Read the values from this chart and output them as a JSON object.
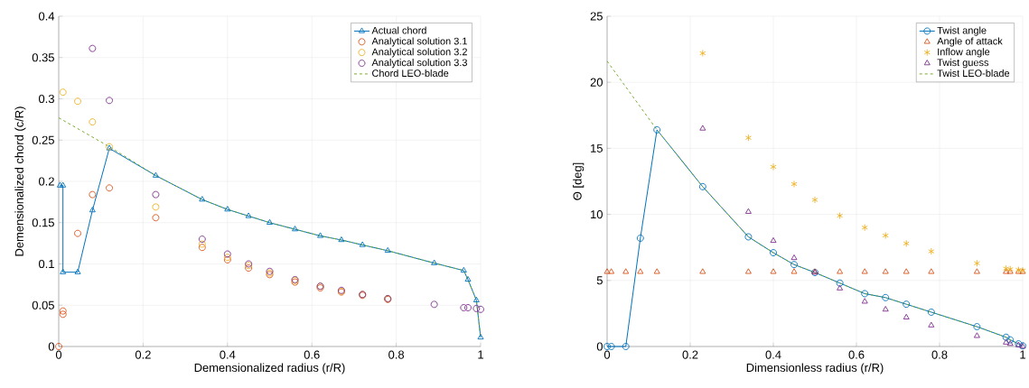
{
  "chart_data": [
    {
      "type": "line",
      "xlabel": "Demensionalized radius (r/R)",
      "ylabel": "Demensionalized chord (c/R)",
      "xlim": [
        0,
        1
      ],
      "ylim": [
        0,
        0.4
      ],
      "xticks": [
        0,
        0.2,
        0.4,
        0.6,
        0.8,
        1
      ],
      "yticks": [
        0,
        0.05,
        0.1,
        0.15,
        0.2,
        0.25,
        0.3,
        0.35,
        0.4
      ],
      "grid": true,
      "legend": "top right",
      "series": [
        {
          "name": "Actual chord",
          "type": "line",
          "color": "#0072bd",
          "marker": "triangle",
          "line_style": "solid",
          "x": [
            0.003,
            0.01,
            0.01,
            0.045,
            0.08,
            0.12,
            0.23,
            0.34,
            0.4,
            0.45,
            0.5,
            0.56,
            0.62,
            0.67,
            0.72,
            0.78,
            0.89,
            0.96,
            0.97,
            0.99,
            1.0
          ],
          "values": [
            0.195,
            0.195,
            0.09,
            0.09,
            0.165,
            0.24,
            0.207,
            0.178,
            0.166,
            0.158,
            0.15,
            0.142,
            0.134,
            0.129,
            0.123,
            0.116,
            0.101,
            0.092,
            0.081,
            0.056,
            0.011
          ]
        },
        {
          "name": "Analytical solution 3.1",
          "type": "scatter",
          "color": "#d95319",
          "marker": "circle",
          "x": [
            0,
            0.01,
            0.01,
            0.045,
            0.08,
            0.12,
            0.23,
            0.34,
            0.4,
            0.45,
            0.5,
            0.56,
            0.62,
            0.67,
            0.72,
            0.78
          ],
          "values": [
            0,
            0.043,
            0.039,
            0.137,
            0.184,
            0.192,
            0.156,
            0.12,
            0.105,
            0.095,
            0.087,
            0.078,
            0.071,
            0.066,
            0.062,
            0.057
          ]
        },
        {
          "name": "Analytical solution 3.2",
          "type": "scatter",
          "color": "#edb120",
          "marker": "circle",
          "x": [
            0.01,
            0.045,
            0.08,
            0.12,
            0.23,
            0.34,
            0.4,
            0.45,
            0.5,
            0.56,
            0.62,
            0.67,
            0.72,
            0.78
          ],
          "values": [
            0.308,
            0.297,
            0.272,
            0.242,
            0.169,
            0.124,
            0.108,
            0.098,
            0.089,
            0.08,
            0.073,
            0.067,
            0.063,
            0.058
          ]
        },
        {
          "name": "Analytical solution 3.3",
          "type": "scatter",
          "color": "#7e2f8e",
          "marker": "circle",
          "x": [
            0.08,
            0.12,
            0.23,
            0.34,
            0.4,
            0.45,
            0.5,
            0.56,
            0.62,
            0.67,
            0.72,
            0.78,
            0.89,
            0.96,
            0.97,
            0.99,
            1.0
          ],
          "values": [
            0.361,
            0.298,
            0.184,
            0.13,
            0.112,
            0.1,
            0.091,
            0.081,
            0.073,
            0.068,
            0.063,
            0.058,
            0.051,
            0.047,
            0.047,
            0.046,
            0.045
          ]
        },
        {
          "name": "Chord LEO-blade",
          "type": "line",
          "color": "#77ac30",
          "marker": "none",
          "line_style": "dashed",
          "x": [
            0,
            0.12,
            0.23,
            0.34,
            0.4,
            0.45,
            0.5,
            0.56,
            0.62,
            0.67,
            0.72,
            0.78,
            0.89,
            0.96,
            0.97,
            0.99,
            1.0
          ],
          "values": [
            0.277,
            0.242,
            0.207,
            0.178,
            0.166,
            0.158,
            0.15,
            0.142,
            0.134,
            0.129,
            0.123,
            0.116,
            0.101,
            0.092,
            0.081,
            0.056,
            0.011
          ]
        }
      ]
    },
    {
      "type": "line",
      "xlabel": "Dimensionless radius (r/R)",
      "ylabel": "Θ [deg]",
      "xlim": [
        0,
        1
      ],
      "ylim": [
        0,
        25
      ],
      "xticks": [
        0,
        0.2,
        0.4,
        0.6,
        0.8,
        1
      ],
      "yticks": [
        0,
        5,
        10,
        15,
        20,
        25
      ],
      "grid": true,
      "legend": "top right",
      "series": [
        {
          "name": "Twist angle",
          "type": "line",
          "color": "#0072bd",
          "marker": "circle",
          "line_style": "solid",
          "x": [
            0,
            0.01,
            0.045,
            0.08,
            0.12,
            0.23,
            0.34,
            0.4,
            0.45,
            0.5,
            0.56,
            0.62,
            0.67,
            0.72,
            0.78,
            0.89,
            0.96,
            0.97,
            0.99,
            1.0
          ],
          "values": [
            0,
            0,
            0,
            8.2,
            16.4,
            12.1,
            8.3,
            7.1,
            6.2,
            5.6,
            4.8,
            4.0,
            3.7,
            3.2,
            2.6,
            1.5,
            0.7,
            0.5,
            0.2,
            0.05
          ]
        },
        {
          "name": "Angle of attack",
          "type": "scatter",
          "color": "#d95319",
          "marker": "triangle",
          "x": [
            0,
            0.01,
            0.045,
            0.08,
            0.12,
            0.23,
            0.34,
            0.4,
            0.45,
            0.5,
            0.56,
            0.62,
            0.67,
            0.72,
            0.78,
            0.89,
            0.96,
            0.97,
            0.99,
            1.0
          ],
          "values": [
            5.65,
            5.65,
            5.65,
            5.65,
            5.65,
            5.65,
            5.65,
            5.65,
            5.65,
            5.65,
            5.65,
            5.65,
            5.65,
            5.65,
            5.65,
            5.65,
            5.65,
            5.65,
            5.65,
            5.65
          ]
        },
        {
          "name": "Inflow angle",
          "type": "scatter",
          "color": "#edb120",
          "marker": "cross",
          "x": [
            0.23,
            0.34,
            0.4,
            0.45,
            0.5,
            0.56,
            0.62,
            0.67,
            0.72,
            0.78,
            0.89,
            0.96,
            0.97,
            0.99,
            1.0
          ],
          "values": [
            22.2,
            15.8,
            13.6,
            12.3,
            11.1,
            9.9,
            9.0,
            8.4,
            7.8,
            7.2,
            6.3,
            5.9,
            5.85,
            5.8,
            5.75
          ]
        },
        {
          "name": "Twist guess",
          "type": "scatter",
          "color": "#7e2f8e",
          "marker": "triangle",
          "x": [
            0.23,
            0.34,
            0.4,
            0.45,
            0.5,
            0.56,
            0.62,
            0.67,
            0.72,
            0.78,
            0.89,
            0.96,
            0.97,
            0.99,
            1.0
          ],
          "values": [
            16.5,
            10.2,
            8.0,
            6.7,
            5.6,
            4.4,
            3.4,
            2.8,
            2.2,
            1.6,
            0.8,
            0.3,
            0.2,
            0.1,
            0.0
          ]
        },
        {
          "name": "Twist LEO-blade",
          "type": "line",
          "color": "#77ac30",
          "marker": "none",
          "line_style": "dashed",
          "x": [
            0,
            0.12,
            0.23,
            0.34,
            0.4,
            0.45,
            0.5,
            0.56,
            0.62,
            0.67,
            0.72,
            0.78,
            0.89,
            0.96,
            0.97,
            0.99,
            1.0
          ],
          "values": [
            21.6,
            16.4,
            12.1,
            8.3,
            7.1,
            6.2,
            5.6,
            4.8,
            4.0,
            3.7,
            3.2,
            2.6,
            1.5,
            0.7,
            0.5,
            0.2,
            0.05
          ]
        }
      ]
    }
  ]
}
